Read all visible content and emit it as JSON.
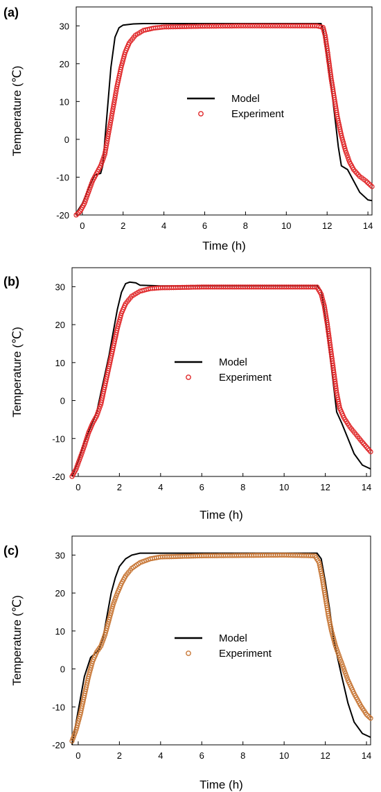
{
  "chart_data": [
    {
      "type": "line",
      "panel_label": "(a)",
      "xlabel": "Time (h)",
      "ylabel": "Temperature (℃)",
      "xlim": [
        -0.3,
        14.2
      ],
      "ylim": [
        -20,
        35
      ],
      "x_ticks": [
        0,
        2,
        4,
        6,
        8,
        10,
        12,
        14
      ],
      "y_ticks": [
        -20,
        -10,
        0,
        10,
        20,
        30
      ],
      "x_tick_labels": [
        "0",
        "2",
        "4",
        "6",
        "8",
        "10",
        "12",
        "14"
      ],
      "y_tick_labels": [
        "-20",
        "-10",
        "0",
        "10",
        "20",
        "30"
      ],
      "legend_position": "center-right",
      "series": [
        {
          "name": "Model",
          "style": "line",
          "color": "#000000",
          "points": [
            [
              -0.3,
              -19.5
            ],
            [
              0,
              -17
            ],
            [
              0.3,
              -13
            ],
            [
              0.6,
              -9.5
            ],
            [
              0.9,
              -9
            ],
            [
              1.0,
              -7
            ],
            [
              1.2,
              6
            ],
            [
              1.4,
              19
            ],
            [
              1.6,
              27
            ],
            [
              1.8,
              29.5
            ],
            [
              2.0,
              30.2
            ],
            [
              2.5,
              30.5
            ],
            [
              3,
              30.6
            ],
            [
              5,
              30.6
            ],
            [
              8,
              30.6
            ],
            [
              11.5,
              30.6
            ],
            [
              11.7,
              30.6
            ],
            [
              11.8,
              29
            ],
            [
              12.0,
              22
            ],
            [
              12.2,
              14
            ],
            [
              12.4,
              5
            ],
            [
              12.55,
              -2
            ],
            [
              12.7,
              -7
            ],
            [
              13.0,
              -8
            ],
            [
              13.3,
              -11
            ],
            [
              13.6,
              -14
            ],
            [
              14.0,
              -16
            ],
            [
              14.2,
              -16.2
            ]
          ]
        },
        {
          "name": "Experiment",
          "style": "markers",
          "color": "#e0282a",
          "points": [
            [
              -0.3,
              -20
            ],
            [
              -0.1,
              -19
            ],
            [
              0.1,
              -17
            ],
            [
              0.3,
              -14
            ],
            [
              0.5,
              -11
            ],
            [
              0.7,
              -9
            ],
            [
              0.9,
              -7
            ],
            [
              1.1,
              -4
            ],
            [
              1.3,
              2
            ],
            [
              1.5,
              8
            ],
            [
              1.7,
              14
            ],
            [
              1.9,
              19
            ],
            [
              2.1,
              23
            ],
            [
              2.3,
              25.5
            ],
            [
              2.6,
              27.5
            ],
            [
              3.0,
              28.8
            ],
            [
              3.5,
              29.4
            ],
            [
              4,
              29.7
            ],
            [
              6,
              29.9
            ],
            [
              8,
              30
            ],
            [
              10,
              30
            ],
            [
              11.5,
              30
            ],
            [
              11.8,
              29.6
            ],
            [
              11.9,
              27.5
            ],
            [
              12.0,
              24
            ],
            [
              12.1,
              20
            ],
            [
              12.2,
              16
            ],
            [
              12.35,
              11
            ],
            [
              12.5,
              6
            ],
            [
              12.7,
              1
            ],
            [
              12.9,
              -3
            ],
            [
              13.1,
              -6
            ],
            [
              13.3,
              -8
            ],
            [
              13.6,
              -9.8
            ],
            [
              13.9,
              -11
            ],
            [
              14.2,
              -12.5
            ]
          ]
        }
      ]
    },
    {
      "type": "line",
      "panel_label": "(b)",
      "xlabel": "Time (h)",
      "ylabel": "Temperature (℃)",
      "xlim": [
        -0.3,
        14.2
      ],
      "ylim": [
        -20,
        35
      ],
      "x_ticks": [
        0,
        2,
        4,
        6,
        8,
        10,
        12,
        14
      ],
      "y_ticks": [
        -20,
        -10,
        0,
        10,
        20,
        30
      ],
      "x_tick_labels": [
        "0",
        "2",
        "4",
        "6",
        "8",
        "10",
        "12",
        "14"
      ],
      "y_tick_labels": [
        "-20",
        "-10",
        "0",
        "10",
        "20",
        "30"
      ],
      "legend_position": "center",
      "series": [
        {
          "name": "Model",
          "style": "line",
          "color": "#000000",
          "points": [
            [
              -0.3,
              -20
            ],
            [
              0,
              -16
            ],
            [
              0.3,
              -11
            ],
            [
              0.6,
              -7
            ],
            [
              0.9,
              -3
            ],
            [
              1.1,
              2
            ],
            [
              1.3,
              7
            ],
            [
              1.5,
              12
            ],
            [
              1.7,
              18
            ],
            [
              1.9,
              24
            ],
            [
              2.1,
              28.5
            ],
            [
              2.3,
              30.8
            ],
            [
              2.5,
              31.2
            ],
            [
              2.8,
              31
            ],
            [
              3,
              30.4
            ],
            [
              4,
              30.2
            ],
            [
              8,
              30.2
            ],
            [
              11.6,
              30.2
            ],
            [
              11.8,
              29
            ],
            [
              12.0,
              22
            ],
            [
              12.2,
              13
            ],
            [
              12.4,
              4
            ],
            [
              12.55,
              -3
            ],
            [
              12.8,
              -6
            ],
            [
              13.1,
              -10
            ],
            [
              13.4,
              -14
            ],
            [
              13.8,
              -17
            ],
            [
              14.2,
              -18
            ]
          ]
        },
        {
          "name": "Experiment",
          "style": "markers",
          "color": "#e0282a",
          "points": [
            [
              -0.3,
              -20
            ],
            [
              -0.1,
              -18
            ],
            [
              0.1,
              -15
            ],
            [
              0.3,
              -12
            ],
            [
              0.5,
              -8.5
            ],
            [
              0.7,
              -6
            ],
            [
              0.9,
              -4
            ],
            [
              1.1,
              -1
            ],
            [
              1.3,
              4
            ],
            [
              1.5,
              9
            ],
            [
              1.7,
              14
            ],
            [
              1.9,
              19
            ],
            [
              2.1,
              23
            ],
            [
              2.3,
              25.5
            ],
            [
              2.6,
              27.5
            ],
            [
              3.0,
              28.8
            ],
            [
              3.5,
              29.5
            ],
            [
              4,
              29.7
            ],
            [
              6,
              29.9
            ],
            [
              8,
              29.9
            ],
            [
              10,
              29.9
            ],
            [
              11.6,
              29.9
            ],
            [
              11.8,
              28
            ],
            [
              11.95,
              25
            ],
            [
              12.1,
              20
            ],
            [
              12.25,
              14
            ],
            [
              12.4,
              8
            ],
            [
              12.55,
              2
            ],
            [
              12.7,
              -2
            ],
            [
              12.9,
              -4.5
            ],
            [
              13.2,
              -7
            ],
            [
              13.5,
              -9
            ],
            [
              13.8,
              -11
            ],
            [
              14.2,
              -13.5
            ]
          ]
        }
      ]
    },
    {
      "type": "line",
      "panel_label": "(c)",
      "xlabel": "Time (h)",
      "ylabel": "Temperature (℃)",
      "xlim": [
        -0.3,
        14.2
      ],
      "ylim": [
        -20,
        35
      ],
      "x_ticks": [
        0,
        2,
        4,
        6,
        8,
        10,
        12,
        14
      ],
      "y_ticks": [
        -20,
        -10,
        0,
        10,
        20,
        30
      ],
      "x_tick_labels": [
        "0",
        "2",
        "4",
        "6",
        "8",
        "10",
        "12",
        "14"
      ],
      "y_tick_labels": [
        "-20",
        "-10",
        "0",
        "10",
        "20",
        "30"
      ],
      "legend_position": "center",
      "series": [
        {
          "name": "Model",
          "style": "line",
          "color": "#000000",
          "points": [
            [
              -0.3,
              -20
            ],
            [
              0,
              -11
            ],
            [
              0.3,
              -2
            ],
            [
              0.6,
              3
            ],
            [
              0.8,
              4
            ],
            [
              1.0,
              5
            ],
            [
              1.2,
              8
            ],
            [
              1.4,
              14
            ],
            [
              1.6,
              20
            ],
            [
              1.8,
              24
            ],
            [
              2.0,
              27
            ],
            [
              2.3,
              29
            ],
            [
              2.6,
              30
            ],
            [
              3,
              30.5
            ],
            [
              4,
              30.5
            ],
            [
              8,
              30.5
            ],
            [
              11.6,
              30.5
            ],
            [
              11.8,
              29
            ],
            [
              12.0,
              23
            ],
            [
              12.2,
              16
            ],
            [
              12.4,
              8
            ],
            [
              12.55,
              4
            ],
            [
              12.8,
              -2
            ],
            [
              13.1,
              -9
            ],
            [
              13.4,
              -14
            ],
            [
              13.8,
              -17
            ],
            [
              14.2,
              -18
            ]
          ]
        },
        {
          "name": "Experiment",
          "style": "markers",
          "color": "#c87838",
          "points": [
            [
              -0.3,
              -19
            ],
            [
              -0.1,
              -16
            ],
            [
              0.1,
              -12
            ],
            [
              0.3,
              -7
            ],
            [
              0.5,
              -2
            ],
            [
              0.7,
              2
            ],
            [
              0.9,
              4.5
            ],
            [
              1.1,
              6
            ],
            [
              1.3,
              9
            ],
            [
              1.5,
              13
            ],
            [
              1.7,
              17
            ],
            [
              1.9,
              20
            ],
            [
              2.1,
              22.5
            ],
            [
              2.3,
              24.5
            ],
            [
              2.6,
              26.5
            ],
            [
              3.0,
              28
            ],
            [
              3.5,
              29
            ],
            [
              4,
              29.5
            ],
            [
              6,
              29.8
            ],
            [
              8,
              29.9
            ],
            [
              10,
              30
            ],
            [
              11.5,
              29.8
            ],
            [
              11.7,
              28
            ],
            [
              11.85,
              24
            ],
            [
              12.0,
              19
            ],
            [
              12.15,
              14
            ],
            [
              12.3,
              10
            ],
            [
              12.5,
              6
            ],
            [
              12.7,
              3
            ],
            [
              12.9,
              0
            ],
            [
              13.1,
              -3
            ],
            [
              13.4,
              -6.5
            ],
            [
              13.7,
              -9.5
            ],
            [
              14.0,
              -12
            ],
            [
              14.2,
              -13
            ]
          ]
        }
      ]
    }
  ]
}
